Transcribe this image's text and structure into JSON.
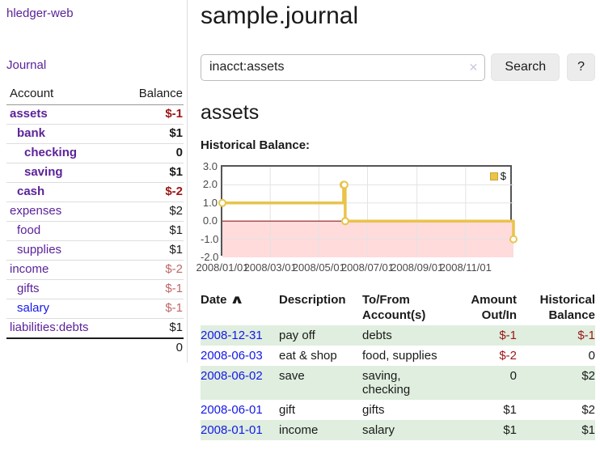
{
  "colors": {
    "link_purple": "#5b2399",
    "link_blue": "#1418e8",
    "neg_strong": "#9c1515",
    "neg_light": "#c06767",
    "row_green": "#dfeede",
    "chart_line": "#e9c34b",
    "chart_negative_fill": "#ffdbdb",
    "chart_zero_line": "#8f1f1f",
    "button_bg": "#ececec"
  },
  "app": {
    "brand": "hledger-web"
  },
  "sidebar": {
    "journal_link": "Journal",
    "accounts_header": {
      "account": "Account",
      "balance": "Balance"
    },
    "accounts": [
      {
        "name": "assets",
        "indent": 1,
        "in_query": true,
        "balance": "$-1",
        "balance_class": "neg-strong"
      },
      {
        "name": "bank",
        "indent": 2,
        "in_query": true,
        "balance": "$1",
        "balance_class": ""
      },
      {
        "name": "checking",
        "indent": 3,
        "in_query": true,
        "balance": "0",
        "balance_class": ""
      },
      {
        "name": "saving",
        "indent": 3,
        "in_query": true,
        "balance": "$1",
        "balance_class": ""
      },
      {
        "name": "cash",
        "indent": 2,
        "in_query": true,
        "balance": "$-2",
        "balance_class": "neg-strong"
      },
      {
        "name": "expenses",
        "indent": 1,
        "in_query": false,
        "balance": "$2",
        "balance_class": ""
      },
      {
        "name": "food",
        "indent": 2,
        "in_query": false,
        "balance": "$1",
        "balance_class": ""
      },
      {
        "name": "supplies",
        "indent": 2,
        "in_query": false,
        "balance": "$1",
        "balance_class": ""
      },
      {
        "name": "income",
        "indent": 1,
        "in_query": false,
        "balance": "$-2",
        "balance_class": "neg-light"
      },
      {
        "name": "gifts",
        "indent": 2,
        "in_query": false,
        "balance": "$-1",
        "balance_class": "neg-light"
      },
      {
        "name": "salary",
        "indent": 2,
        "in_query": false,
        "balance": "$-1",
        "balance_class": "neg-light",
        "unvisited": true
      },
      {
        "name": "liabilities:debts",
        "indent": 1,
        "in_query": false,
        "balance": "$1",
        "balance_class": ""
      }
    ],
    "total": "0"
  },
  "header": {
    "title": "sample.journal"
  },
  "search": {
    "value": "inacct:assets",
    "clear_icon": "✕",
    "search_button": "Search",
    "help_button": "?"
  },
  "account_page": {
    "heading": "assets",
    "chart_title": "Historical Balance:"
  },
  "chart_data": {
    "type": "line",
    "title": "Historical Balance",
    "step": true,
    "series": [
      {
        "name": "$",
        "points": [
          [
            "2008-01-01",
            1
          ],
          [
            "2008-06-01",
            2
          ],
          [
            "2008-06-02",
            2
          ],
          [
            "2008-06-03",
            0
          ],
          [
            "2008-12-31",
            -1
          ]
        ]
      }
    ],
    "ylim": [
      -2,
      3
    ],
    "yticks": [
      3.0,
      2.0,
      1.0,
      0.0,
      -1.0,
      -2.0
    ],
    "xticks": [
      {
        "label": "2008/01/01",
        "date": "2008-01-01"
      },
      {
        "label": "2008/03/01",
        "date": "2008-03-01"
      },
      {
        "label": "2008/05/01",
        "date": "2008-05-01"
      },
      {
        "label": "2008/07/01",
        "date": "2008-07-01"
      },
      {
        "label": "2008/09/01",
        "date": "2008-09-01"
      },
      {
        "label": "2008/11/01",
        "date": "2008-11-01"
      }
    ],
    "xrange": [
      "2008-01-01",
      "2008-12-31"
    ],
    "grid": true,
    "legend_position": "top-right",
    "legend_label": "$"
  },
  "register": {
    "headers": {
      "date": "Date",
      "description": "Description",
      "accounts": "To/From\nAccount(s)",
      "amount": "Amount\nOut/In",
      "balance": "Historical\nBalance"
    },
    "sort_icon": "∧",
    "rows": [
      {
        "date": "2008-12-31",
        "description": "pay off",
        "accounts": "debts",
        "amount": "$-1",
        "amount_negative": true,
        "balance": "$-1",
        "balance_negative": true
      },
      {
        "date": "2008-06-03",
        "description": "eat & shop",
        "accounts": "food, supplies",
        "amount": "$-2",
        "amount_negative": true,
        "balance": "0",
        "balance_negative": false
      },
      {
        "date": "2008-06-02",
        "description": "save",
        "accounts": "saving, checking",
        "amount": "0",
        "amount_negative": false,
        "balance": "$2",
        "balance_negative": false
      },
      {
        "date": "2008-06-01",
        "description": "gift",
        "accounts": "gifts",
        "amount": "$1",
        "amount_negative": false,
        "balance": "$2",
        "balance_negative": false
      },
      {
        "date": "2008-01-01",
        "description": "income",
        "accounts": "salary",
        "amount": "$1",
        "amount_negative": false,
        "balance": "$1",
        "balance_negative": false
      }
    ]
  }
}
